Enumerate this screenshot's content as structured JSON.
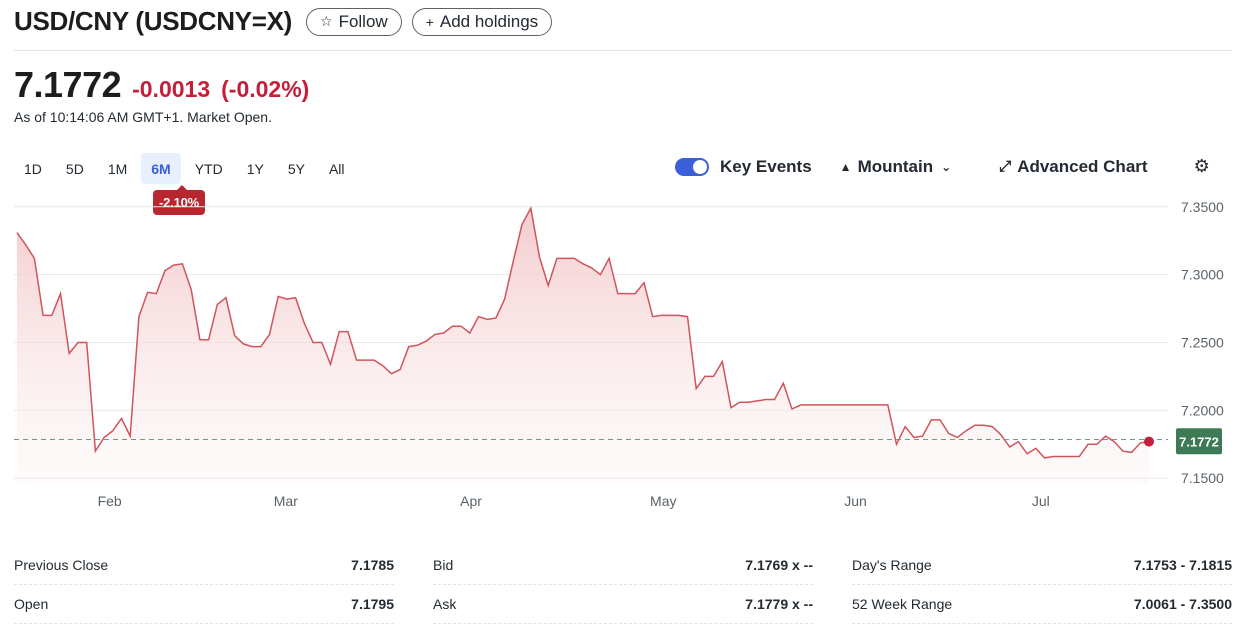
{
  "header": {
    "title": "USD/CNY (USDCNY=X)",
    "follow_label": "Follow",
    "add_holdings_label": "Add holdings"
  },
  "quote": {
    "price": "7.1772",
    "change": "-0.0013",
    "change_pct": "(-0.02%)",
    "as_of": "As of 10:14:06 AM GMT+1. Market Open."
  },
  "ranges": [
    "1D",
    "5D",
    "1M",
    "6M",
    "YTD",
    "1Y",
    "5Y",
    "All"
  ],
  "active_range": "6M",
  "range_performance": "-2.10%",
  "toolbar": {
    "key_events_label": "Key Events",
    "key_events_on": true,
    "chart_type_label": "Mountain",
    "advanced_chart_label": "Advanced Chart"
  },
  "colors": {
    "line": "#d0545c",
    "fill_top": "#f3c9cb",
    "last_badge": "#3f7a57",
    "negative": "#c41e3a",
    "accent": "#3b5fd9"
  },
  "chart_data": {
    "type": "area",
    "y_ticks": [
      "7.3500",
      "7.3000",
      "7.2500",
      "7.2000",
      "7.1500"
    ],
    "x_ticks": [
      "Feb",
      "Mar",
      "Apr",
      "May",
      "Jun",
      "Jul"
    ],
    "ylim": [
      7.145,
      7.355
    ],
    "last_value": "7.1772",
    "prev_close_value": 7.1785,
    "values": [
      7.331,
      7.322,
      7.312,
      7.27,
      7.27,
      7.286,
      7.242,
      7.25,
      7.25,
      7.17,
      7.18,
      7.185,
      7.194,
      7.181,
      7.269,
      7.287,
      7.286,
      7.303,
      7.307,
      7.308,
      7.289,
      7.252,
      7.252,
      7.278,
      7.283,
      7.255,
      7.249,
      7.247,
      7.247,
      7.256,
      7.284,
      7.282,
      7.283,
      7.264,
      7.25,
      7.25,
      7.234,
      7.258,
      7.258,
      7.237,
      7.237,
      7.237,
      7.233,
      7.227,
      7.23,
      7.247,
      7.248,
      7.251,
      7.256,
      7.257,
      7.262,
      7.262,
      7.257,
      7.269,
      7.267,
      7.268,
      7.282,
      7.31,
      7.337,
      7.349,
      7.313,
      7.292,
      7.312,
      7.312,
      7.312,
      7.308,
      7.305,
      7.3,
      7.312,
      7.286,
      7.286,
      7.286,
      7.294,
      7.269,
      7.27,
      7.27,
      7.27,
      7.269,
      7.216,
      7.225,
      7.225,
      7.236,
      7.202,
      7.206,
      7.206,
      7.207,
      7.208,
      7.208,
      7.22,
      7.201,
      7.204,
      7.204,
      7.204,
      7.204,
      7.204,
      7.204,
      7.204,
      7.204,
      7.204,
      7.204,
      7.204,
      7.175,
      7.188,
      7.18,
      7.181,
      7.193,
      7.193,
      7.183,
      7.18,
      7.185,
      7.189,
      7.189,
      7.188,
      7.182,
      7.173,
      7.177,
      7.168,
      7.172,
      7.165,
      7.166,
      7.166,
      7.166,
      7.166,
      7.175,
      7.175,
      7.181,
      7.177,
      7.17,
      7.169,
      7.176,
      7.177
    ]
  },
  "stats": {
    "col1": [
      {
        "label": "Previous Close",
        "value": "7.1785"
      },
      {
        "label": "Open",
        "value": "7.1795"
      }
    ],
    "col2": [
      {
        "label": "Bid",
        "value": "7.1769 x --"
      },
      {
        "label": "Ask",
        "value": "7.1779 x --"
      }
    ],
    "col3": [
      {
        "label": "Day's Range",
        "value": "7.1753 - 7.1815"
      },
      {
        "label": "52 Week Range",
        "value": "7.0061 - 7.3500"
      }
    ]
  }
}
